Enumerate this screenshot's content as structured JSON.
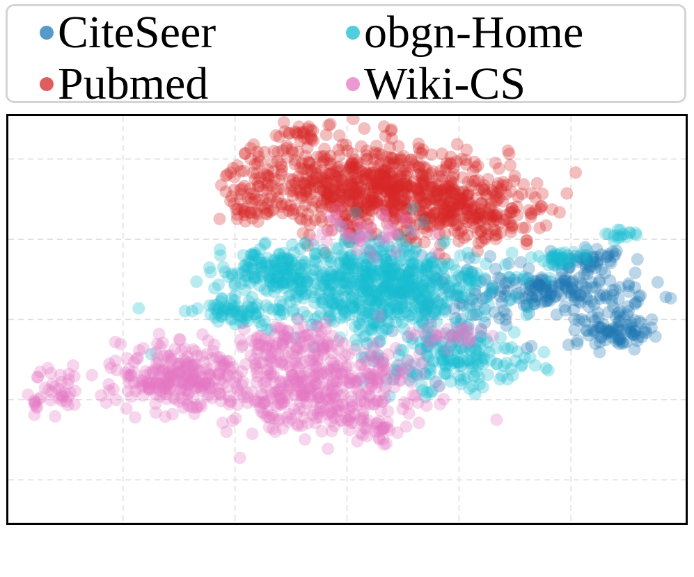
{
  "chart_data": {
    "type": "scatter",
    "title": "",
    "xlabel": "",
    "ylabel": "",
    "xlim": [
      -60,
      60
    ],
    "ylim": [
      -50,
      50
    ],
    "grid": true,
    "axis_ticks_visible": false,
    "legend_placement": "top, two columns",
    "point_alpha": 0.3,
    "series": [
      {
        "name": "CiteSeer",
        "color": "#1f77b4",
        "clusters": [
          {
            "center": [
              38,
              7
            ],
            "spread": [
              8,
              3
            ],
            "count": 160
          },
          {
            "center": [
              48,
              -2
            ],
            "spread": [
              4,
              3
            ],
            "count": 90
          },
          {
            "center": [
              43,
              15
            ],
            "spread": [
              4,
              1.5
            ],
            "count": 45
          },
          {
            "center": [
              20,
              5
            ],
            "spread": [
              10,
              8
            ],
            "count": 70
          }
        ]
      },
      {
        "name": "Pubmed",
        "color": "#d62728",
        "clusters": [
          {
            "center": [
              8,
              32
            ],
            "spread": [
              12,
              7
            ],
            "count": 550
          },
          {
            "center": [
              -5,
              35
            ],
            "spread": [
              10,
              5
            ],
            "count": 200
          },
          {
            "center": [
              24,
              27
            ],
            "spread": [
              8,
              5
            ],
            "count": 170
          },
          {
            "center": [
              -8,
              46
            ],
            "spread": [
              3,
              1.5
            ],
            "count": 25
          },
          {
            "center": [
              -18,
              27
            ],
            "spread": [
              3,
              2
            ],
            "count": 25
          }
        ]
      },
      {
        "name": "obgn-Home",
        "color": "#17becf",
        "clusters": [
          {
            "center": [
              5,
              8
            ],
            "spread": [
              12,
              7
            ],
            "count": 650
          },
          {
            "center": [
              -14,
              12
            ],
            "spread": [
              5,
              3
            ],
            "count": 120
          },
          {
            "center": [
              -20,
              2
            ],
            "spread": [
              4,
              2
            ],
            "count": 60
          },
          {
            "center": [
              20,
              -10
            ],
            "spread": [
              8,
              5
            ],
            "count": 180
          },
          {
            "center": [
              38,
              15
            ],
            "spread": [
              3,
              1
            ],
            "count": 30
          },
          {
            "center": [
              48,
              21
            ],
            "spread": [
              2,
              1
            ],
            "count": 15
          }
        ]
      },
      {
        "name": "Wiki-CS",
        "color": "#e377c2",
        "clusters": [
          {
            "center": [
              -30,
              -14
            ],
            "spread": [
              7,
              5
            ],
            "count": 260
          },
          {
            "center": [
              -5,
              -17
            ],
            "spread": [
              10,
              7
            ],
            "count": 400
          },
          {
            "center": [
              -10,
              -6
            ],
            "spread": [
              5,
              3
            ],
            "count": 80
          },
          {
            "center": [
              -53,
              -18
            ],
            "spread": [
              3,
              3
            ],
            "count": 40
          },
          {
            "center": [
              5,
              -27
            ],
            "spread": [
              2,
              2
            ],
            "count": 25
          },
          {
            "center": [
              20,
              -4
            ],
            "spread": [
              3,
              1.5
            ],
            "count": 25
          },
          {
            "center": [
              5,
              22
            ],
            "spread": [
              6,
              3
            ],
            "count": 40
          }
        ]
      }
    ]
  }
}
